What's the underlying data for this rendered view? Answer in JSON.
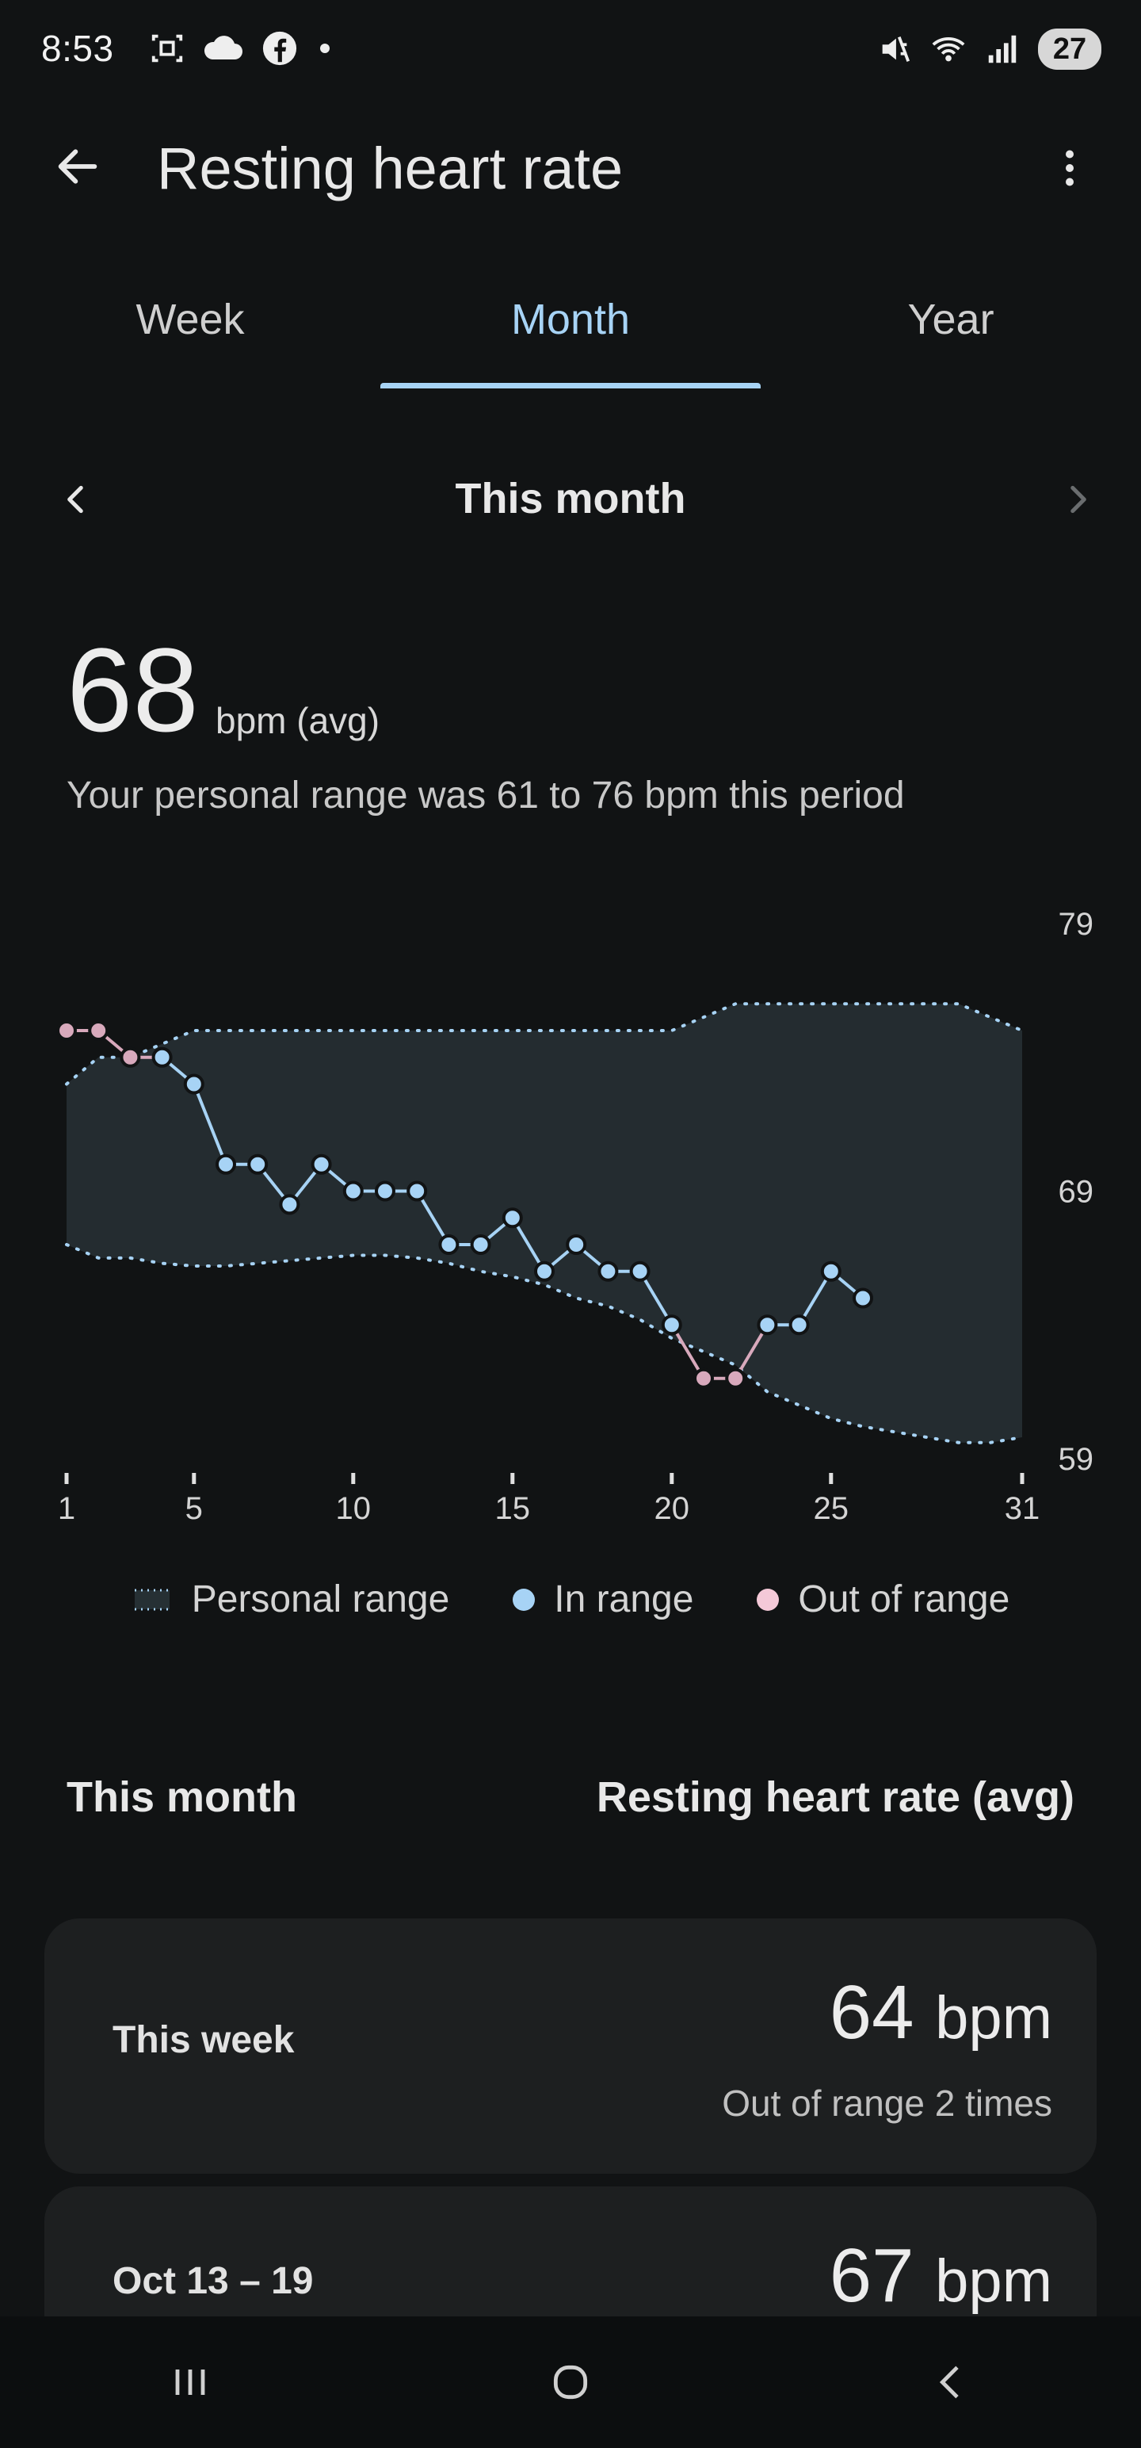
{
  "status_bar": {
    "time": "8:53",
    "battery": "27",
    "icons_left": [
      "screenshot-icon",
      "cloud-icon",
      "facebook-icon",
      "dot-icon"
    ],
    "icons_right": [
      "mute-icon",
      "wifi-icon",
      "signal-icon"
    ]
  },
  "app_bar": {
    "title": "Resting heart rate",
    "back_icon": "arrow-back-icon",
    "more_icon": "more-vert-icon"
  },
  "tabs": [
    {
      "label": "Week",
      "active": false
    },
    {
      "label": "Month",
      "active": true
    },
    {
      "label": "Year",
      "active": false
    }
  ],
  "period": {
    "label": "This month"
  },
  "summary": {
    "value": "68",
    "unit": "bpm (avg)",
    "range_text": "Your personal range was 61 to 76 bpm this period"
  },
  "chart_data": {
    "type": "line",
    "x_ticks": [
      "1",
      "5",
      "10",
      "15",
      "20",
      "25",
      "31"
    ],
    "y_ticks": [
      "79",
      "69",
      "59"
    ],
    "ylim": [
      59,
      79
    ],
    "xlim": [
      1,
      31
    ],
    "series": [
      {
        "name": "Resting heart rate",
        "x": [
          1,
          2,
          3,
          4,
          5,
          6,
          7,
          8,
          9,
          10,
          11,
          12,
          13,
          14,
          15,
          16,
          17,
          18,
          19,
          20,
          21,
          22,
          23,
          24,
          25,
          26
        ],
        "y": [
          75,
          75,
          74,
          74,
          73,
          70,
          70,
          68.5,
          70,
          69,
          69,
          69,
          67,
          67,
          68,
          66,
          67,
          66,
          66,
          64,
          62,
          62,
          64,
          64,
          66,
          65
        ],
        "status": [
          "out",
          "out",
          "out",
          "in",
          "in",
          "in",
          "in",
          "in",
          "in",
          "in",
          "in",
          "in",
          "in",
          "in",
          "in",
          "in",
          "in",
          "in",
          "in",
          "in",
          "out",
          "out",
          "in",
          "in",
          "in",
          "in"
        ]
      }
    ],
    "personal_range": {
      "x": [
        1,
        2,
        3,
        4,
        5,
        6,
        7,
        8,
        9,
        10,
        11,
        12,
        13,
        14,
        15,
        16,
        17,
        18,
        19,
        20,
        21,
        22,
        23,
        24,
        25,
        26,
        27,
        28,
        29,
        30,
        31
      ],
      "upper": [
        73,
        74,
        74,
        74.5,
        75,
        75,
        75,
        75,
        75,
        75,
        75,
        75,
        75,
        75,
        75,
        75,
        75,
        75,
        75,
        75,
        75.5,
        76,
        76,
        76,
        76,
        76,
        76,
        76,
        76,
        75.5,
        75
      ],
      "lower": [
        67,
        66.5,
        66.5,
        66.3,
        66.2,
        66.2,
        66.3,
        66.4,
        66.5,
        66.6,
        66.6,
        66.5,
        66.3,
        66,
        65.8,
        65.5,
        65,
        64.7,
        64.2,
        63.5,
        63,
        62.5,
        61.5,
        61,
        60.5,
        60.2,
        60,
        59.8,
        59.6,
        59.6,
        59.8
      ]
    },
    "legend": [
      {
        "label": "Personal range",
        "color": "#263034"
      },
      {
        "label": "In range",
        "color": "#a7d3f5"
      },
      {
        "label": "Out of range",
        "color": "#f4c9d8"
      }
    ],
    "colors": {
      "in_range": "#a7d3f5",
      "out_range": "#d8a9bc",
      "band": "#242c30",
      "band_edge": "#a7d3f5"
    }
  },
  "list_header": {
    "left": "This month",
    "right": "Resting heart rate (avg)"
  },
  "cards": [
    {
      "label": "This week",
      "value": "64",
      "unit": "bpm",
      "sub": "Out of range 2 times"
    },
    {
      "label": "Oct 13 – 19",
      "value": "67",
      "unit": "bpm",
      "sub": ""
    }
  ],
  "nav": {
    "recent_icon": "recent-apps-icon",
    "home_icon": "home-icon",
    "back_icon": "nav-back-icon"
  }
}
